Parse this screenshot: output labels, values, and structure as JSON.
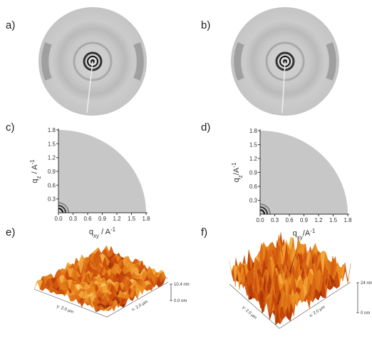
{
  "panels": [
    {
      "label": "a)"
    },
    {
      "label": "b)"
    },
    {
      "label": "c)",
      "y_label": [
        "q",
        "z",
        " / A",
        "-1"
      ],
      "x_label": [
        "q",
        "xy",
        " / A",
        "-1"
      ],
      "yticks": [
        "0.3",
        "0.6",
        "0.9",
        "1.2",
        "1.5",
        "1.8"
      ],
      "xticks": [
        "0.0",
        "0.3",
        "0.6",
        "0.9",
        "1.2",
        "1.5",
        "1.8"
      ]
    },
    {
      "label": "d)",
      "y_label": [
        "q",
        "z",
        "/A",
        "-1"
      ],
      "x_label": [
        "q",
        "xy",
        "/A",
        "-1"
      ],
      "yticks": [
        "0.3",
        "0.6",
        "0.9",
        "1.2",
        "1.5",
        "1.8"
      ],
      "xticks": [
        "0.0",
        "0.3",
        "0.6",
        "0.9",
        "1.2",
        "1.5",
        "1.8"
      ]
    },
    {
      "label": "e)",
      "scale_top": "10.4 nm",
      "scale_bottom": "0.0 nm",
      "y_axis": "y: 2.0 µm",
      "x_axis": "x: 2.0 µm"
    },
    {
      "label": "f)",
      "scale_top": "24 nm",
      "scale_bottom": "0 nm",
      "y_axis": "y: 2.0 µm",
      "x_axis": "x: 2.0 µm"
    }
  ]
}
